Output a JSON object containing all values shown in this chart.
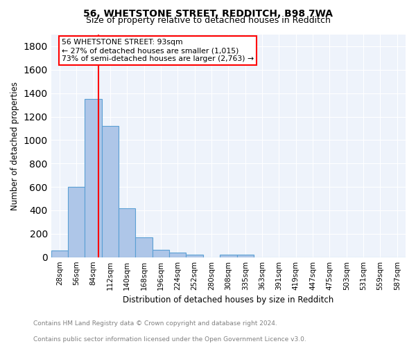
{
  "title1": "56, WHETSTONE STREET, REDDITCH, B98 7WA",
  "title2": "Size of property relative to detached houses in Redditch",
  "xlabel": "Distribution of detached houses by size in Redditch",
  "ylabel": "Number of detached properties",
  "footnote_line1": "Contains HM Land Registry data © Crown copyright and database right 2024.",
  "footnote_line2": "Contains public sector information licensed under the Open Government Licence v3.0.",
  "bar_labels": [
    "28sqm",
    "56sqm",
    "84sqm",
    "112sqm",
    "140sqm",
    "168sqm",
    "196sqm",
    "224sqm",
    "252sqm",
    "280sqm",
    "308sqm",
    "335sqm",
    "363sqm",
    "391sqm",
    "419sqm",
    "447sqm",
    "475sqm",
    "503sqm",
    "531sqm",
    "559sqm",
    "587sqm"
  ],
  "bar_values": [
    60,
    600,
    1350,
    1120,
    420,
    170,
    65,
    40,
    20,
    0,
    20,
    20,
    0,
    0,
    0,
    0,
    0,
    0,
    0,
    0,
    0
  ],
  "bar_color": "#aec6e8",
  "bar_edge_color": "#5a9fd4",
  "vline_color": "red",
  "annotation_text_line1": "56 WHETSTONE STREET: 93sqm",
  "annotation_text_line2": "← 27% of detached houses are smaller (1,015)",
  "annotation_text_line3": "73% of semi-detached houses are larger (2,763) →",
  "annotation_box_color": "red",
  "ylim": [
    0,
    1900
  ],
  "yticks": [
    0,
    200,
    400,
    600,
    800,
    1000,
    1200,
    1400,
    1600,
    1800
  ],
  "bg_color": "#eef3fb",
  "grid_color": "white"
}
